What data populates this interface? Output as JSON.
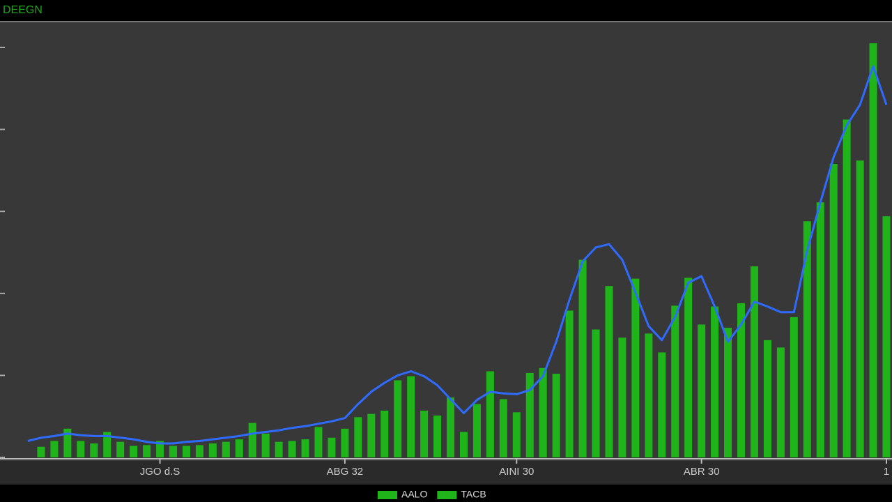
{
  "chart_data": {
    "type": "bar-line",
    "title": "DEEGN",
    "categories": [
      null,
      null,
      null,
      null,
      null,
      null,
      null,
      null,
      null,
      null,
      "JGO d.S",
      null,
      null,
      null,
      null,
      null,
      null,
      null,
      null,
      null,
      null,
      null,
      null,
      null,
      "ABG 32",
      null,
      null,
      null,
      null,
      null,
      null,
      null,
      null,
      null,
      null,
      null,
      null,
      "AINI 30",
      null,
      null,
      null,
      null,
      null,
      null,
      null,
      null,
      null,
      null,
      null,
      null,
      null,
      "ABR 30",
      null,
      null,
      null,
      null,
      null,
      null,
      null,
      null,
      null,
      null,
      null,
      null,
      null,
      "1"
    ],
    "series": [
      {
        "name": "AALO",
        "color": "#1fb51a",
        "values": [
          0.0,
          0.13,
          0.2,
          0.35,
          0.2,
          0.17,
          0.31,
          0.19,
          0.14,
          0.15,
          0.2,
          0.14,
          0.14,
          0.15,
          0.17,
          0.19,
          0.22,
          0.42,
          0.29,
          0.19,
          0.2,
          0.22,
          0.37,
          0.24,
          0.35,
          0.49,
          0.53,
          0.57,
          0.94,
          0.99,
          0.57,
          0.51,
          0.73,
          0.31,
          0.65,
          1.05,
          0.71,
          0.55,
          1.03,
          1.09,
          1.02,
          1.79,
          2.41,
          1.56,
          2.09,
          1.46,
          2.18,
          1.51,
          1.28,
          1.85,
          2.19,
          1.62,
          1.84,
          1.58,
          1.88,
          2.33,
          1.43,
          1.34,
          1.71,
          2.88,
          3.11,
          3.58,
          4.12,
          3.62,
          5.05,
          2.94
        ]
      },
      {
        "name": "TACB",
        "color": "#2f6bff",
        "values": [
          0.2,
          0.24,
          0.26,
          0.29,
          0.27,
          0.26,
          0.26,
          0.24,
          0.22,
          0.19,
          0.17,
          0.17,
          0.19,
          0.2,
          0.22,
          0.24,
          0.26,
          0.29,
          0.31,
          0.33,
          0.36,
          0.38,
          0.41,
          0.44,
          0.48,
          0.65,
          0.8,
          0.91,
          1.0,
          1.05,
          0.99,
          0.88,
          0.71,
          0.54,
          0.7,
          0.8,
          0.78,
          0.77,
          0.82,
          0.99,
          1.41,
          1.92,
          2.39,
          2.56,
          2.6,
          2.41,
          2.01,
          1.6,
          1.43,
          1.71,
          2.13,
          2.21,
          1.84,
          1.41,
          1.62,
          1.9,
          1.84,
          1.77,
          1.77,
          2.52,
          3.11,
          3.66,
          4.05,
          4.3,
          4.77,
          4.3
        ]
      }
    ],
    "ylim": [
      0,
      5.1
    ],
    "yticks": [
      0,
      1,
      2,
      3,
      4,
      5
    ]
  }
}
